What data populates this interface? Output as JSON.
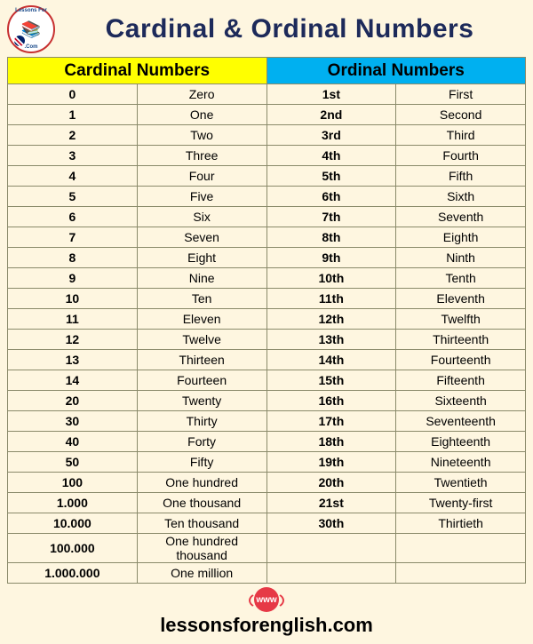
{
  "page": {
    "title": "Cardinal & Ordinal Numbers",
    "footer_url": "lessonsforenglish.com",
    "logo_alt": "Lessons For English"
  },
  "headers": {
    "cardinal": "Cardinal Numbers",
    "ordinal": "Ordinal Numbers"
  },
  "colors": {
    "background": "#fef6e0",
    "cardinal_header_bg": "#ffff00",
    "ordinal_header_bg": "#00b0f0",
    "title_color": "#1d2a5a",
    "border_color": "#8a8a6a",
    "accent": "#e63946"
  },
  "rows": [
    {
      "num": "0",
      "word": "Zero",
      "ord": "1st",
      "ordword": "First"
    },
    {
      "num": "1",
      "word": "One",
      "ord": "2nd",
      "ordword": "Second"
    },
    {
      "num": "2",
      "word": "Two",
      "ord": "3rd",
      "ordword": "Third"
    },
    {
      "num": "3",
      "word": "Three",
      "ord": "4th",
      "ordword": "Fourth"
    },
    {
      "num": "4",
      "word": "Four",
      "ord": "5th",
      "ordword": "Fifth"
    },
    {
      "num": "5",
      "word": "Five",
      "ord": "6th",
      "ordword": "Sixth"
    },
    {
      "num": "6",
      "word": "Six",
      "ord": "7th",
      "ordword": "Seventh"
    },
    {
      "num": "7",
      "word": "Seven",
      "ord": "8th",
      "ordword": "Eighth"
    },
    {
      "num": "8",
      "word": "Eight",
      "ord": "9th",
      "ordword": "Ninth"
    },
    {
      "num": "9",
      "word": "Nine",
      "ord": "10th",
      "ordword": "Tenth"
    },
    {
      "num": "10",
      "word": "Ten",
      "ord": "11th",
      "ordword": "Eleventh"
    },
    {
      "num": "11",
      "word": "Eleven",
      "ord": "12th",
      "ordword": "Twelfth"
    },
    {
      "num": "12",
      "word": "Twelve",
      "ord": "13th",
      "ordword": "Thirteenth"
    },
    {
      "num": "13",
      "word": "Thirteen",
      "ord": "14th",
      "ordword": "Fourteenth"
    },
    {
      "num": "14",
      "word": "Fourteen",
      "ord": "15th",
      "ordword": "Fifteenth"
    },
    {
      "num": "20",
      "word": "Twenty",
      "ord": "16th",
      "ordword": "Sixteenth"
    },
    {
      "num": "30",
      "word": "Thirty",
      "ord": "17th",
      "ordword": "Seventeenth"
    },
    {
      "num": "40",
      "word": "Forty",
      "ord": "18th",
      "ordword": "Eighteenth"
    },
    {
      "num": "50",
      "word": "Fifty",
      "ord": "19th",
      "ordword": "Nineteenth"
    },
    {
      "num": "100",
      "word": "One hundred",
      "ord": "20th",
      "ordword": "Twentieth"
    },
    {
      "num": "1.000",
      "word": "One thousand",
      "ord": "21st",
      "ordword": "Twenty-first"
    },
    {
      "num": "10.000",
      "word": "Ten thousand",
      "ord": "30th",
      "ordword": "Thirtieth"
    },
    {
      "num": "100.000",
      "word": "One hundred thousand",
      "ord": "",
      "ordword": ""
    },
    {
      "num": "1.000.000",
      "word": "One million",
      "ord": "",
      "ordword": ""
    }
  ]
}
